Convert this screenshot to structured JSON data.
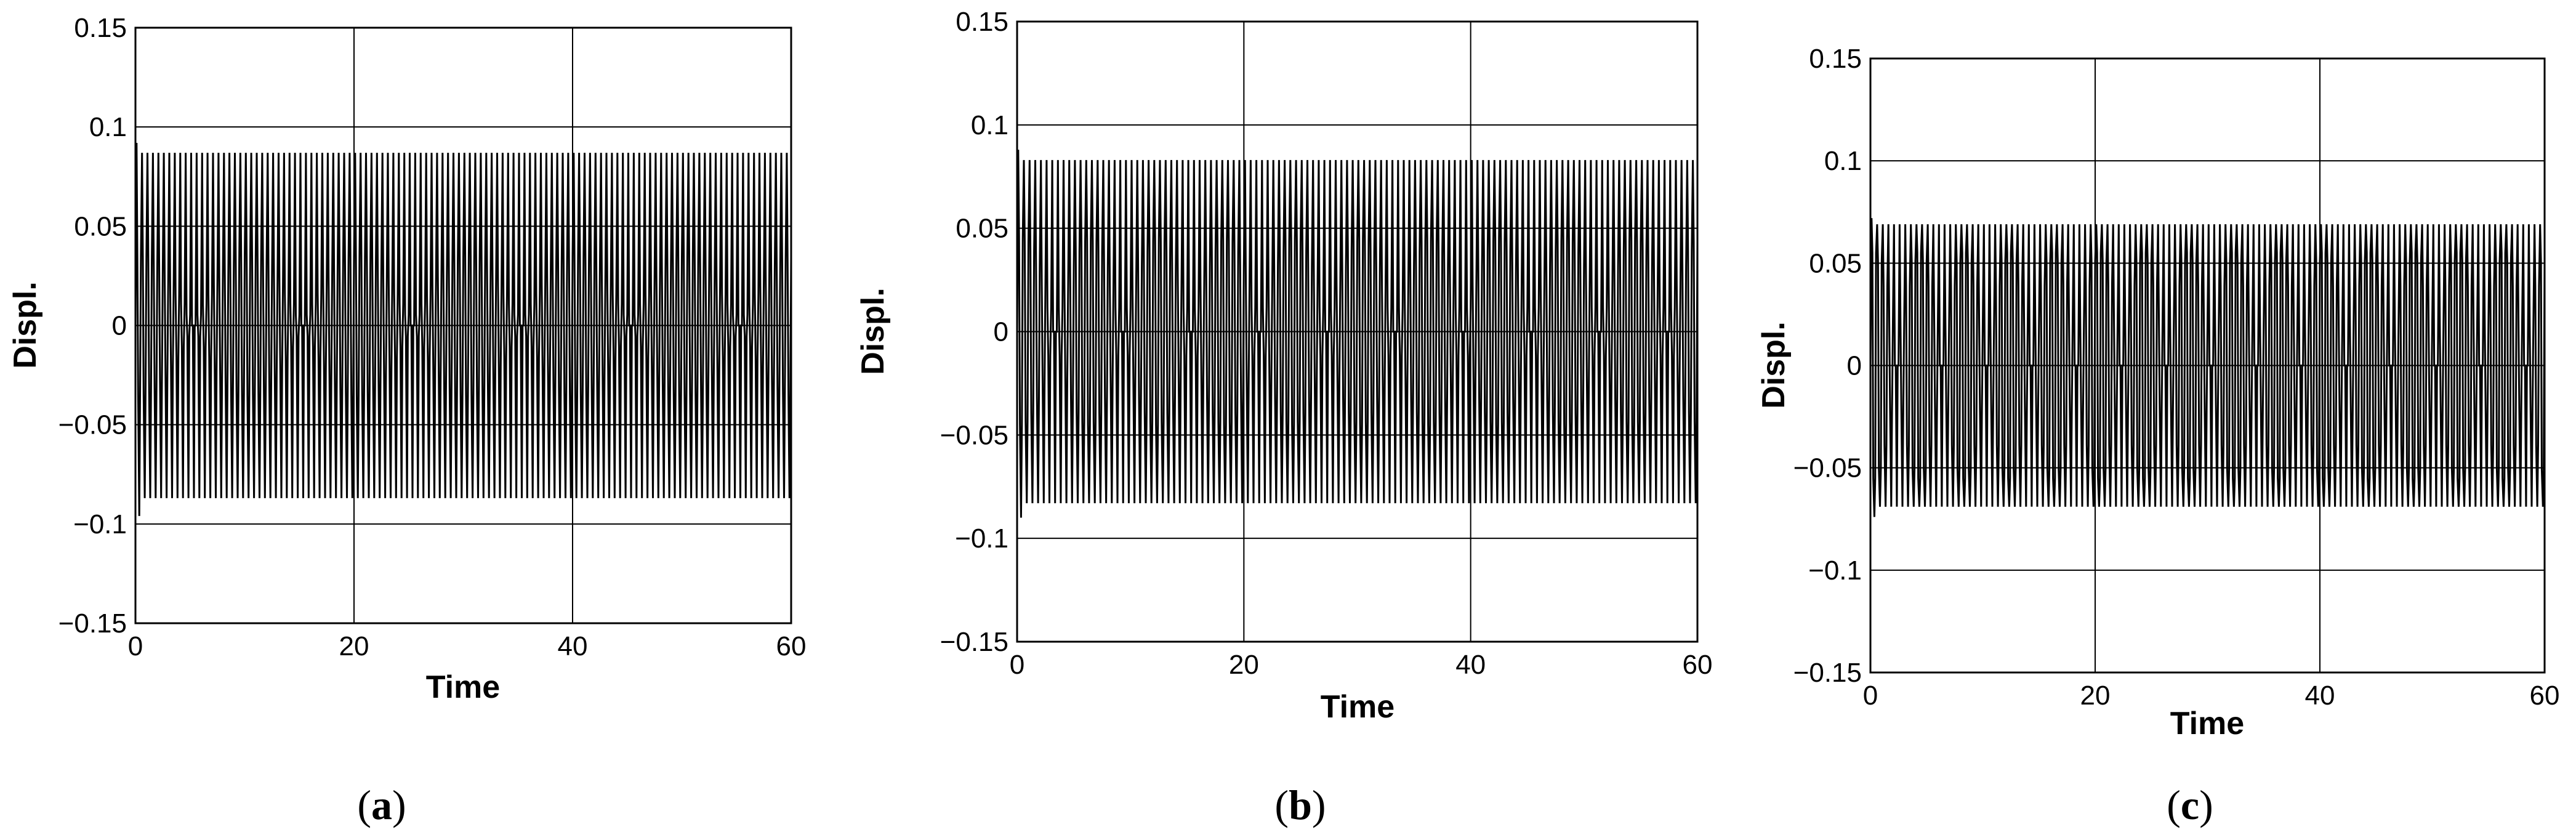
{
  "chart_data": [
    {
      "type": "line",
      "panel": "a",
      "xlabel": "Time",
      "ylabel": "Displ.",
      "xlim": [
        0,
        60
      ],
      "ylim": [
        -0.15,
        0.15
      ],
      "x_ticks": [
        "0",
        "20",
        "40",
        "60"
      ],
      "y_ticks": [
        "-0.15",
        "-0.1",
        "-0.05",
        "0",
        "0.05",
        "0.1",
        "0.15"
      ],
      "grid": true,
      "series": [
        {
          "amplitude": 0.087,
          "initial_peak": 0.092,
          "initial_trough": -0.096,
          "beat_inner_amplitude": 0.035,
          "beat_period": 10,
          "cycles": 120
        }
      ]
    },
    {
      "type": "line",
      "panel": "b",
      "xlabel": "Time",
      "ylabel": "Displ.",
      "xlim": [
        0,
        60
      ],
      "ylim": [
        -0.15,
        0.15
      ],
      "x_ticks": [
        "0",
        "20",
        "40",
        "60"
      ],
      "y_ticks": [
        "-0.15",
        "-0.1",
        "-0.05",
        "0",
        "0.05",
        "0.1",
        "0.15"
      ],
      "grid": true,
      "series": [
        {
          "amplitude": 0.083,
          "initial_peak": 0.088,
          "initial_trough": -0.09,
          "beat_inner_amplitude": 0.045,
          "beat_period": 6,
          "cycles": 120
        }
      ]
    },
    {
      "type": "line",
      "panel": "c",
      "xlabel": "Time",
      "ylabel": "Displ.",
      "xlim": [
        0,
        60
      ],
      "ylim": [
        -0.15,
        0.15
      ],
      "x_ticks": [
        "0",
        "20",
        "40",
        "60"
      ],
      "y_ticks": [
        "-0.15",
        "-0.1",
        "-0.05",
        "0",
        "0.05",
        "0.1",
        "0.15"
      ],
      "grid": true,
      "series": [
        {
          "amplitude": 0.069,
          "initial_peak": 0.072,
          "initial_trough": -0.074,
          "beat_inner_amplitude": 0.055,
          "beat_period": 4,
          "cycles": 120
        }
      ]
    }
  ],
  "captions": [
    {
      "open": "(",
      "letter": "a",
      "close": ")"
    },
    {
      "open": "(",
      "letter": "b",
      "close": ")"
    },
    {
      "open": "(",
      "letter": "c",
      "close": ")"
    }
  ]
}
